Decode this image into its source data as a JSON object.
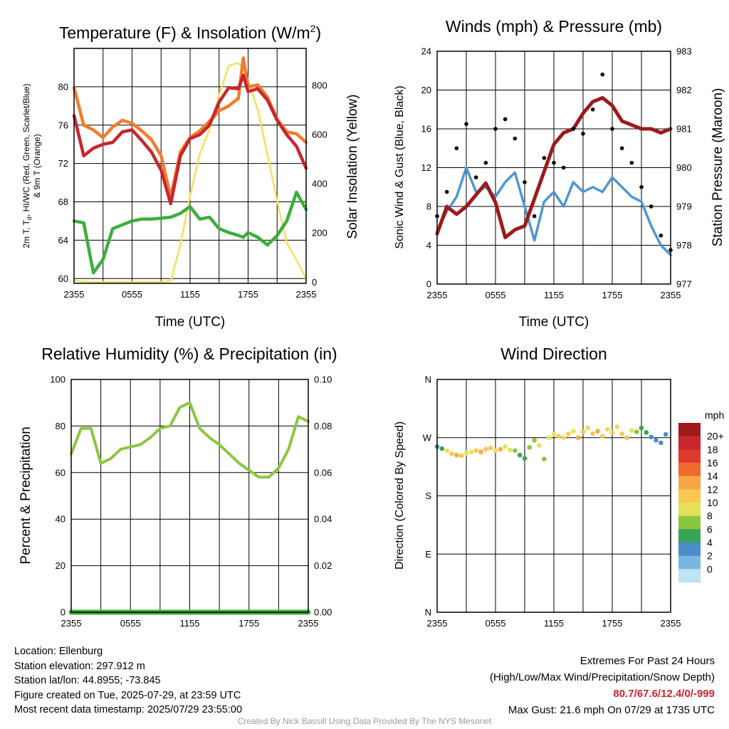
{
  "colors": {
    "temperature": "#c8262e",
    "dewpoint": "#3cae3c",
    "heat_index": "#f07c2e",
    "insolation": "#f5e05a",
    "wind": "#4f97d1",
    "gust": "#000000",
    "pressure": "#9b1b1b",
    "humidity": "#8cc63f",
    "precip": "#3cae3c"
  },
  "panels": {
    "temp": {
      "title_main": "Temperature (F) & Insolation (W/m",
      "title_sup": "2",
      "title_close": ")",
      "ylabel_line1": "2m T, T",
      "ylabel_sub": "d",
      "ylabel_line1b": ", HI/WC (Red, Green, Scarlet/Blue)",
      "ylabel_line2": "& 9m T (Orange)",
      "y2label": "Solar Insolation (Yellow)",
      "xlabel": "Time (UTC)"
    },
    "wind": {
      "title": "Winds (mph) & Pressure (mb)",
      "ylabel": "Sonic Wind & Gust (Blue, Black)",
      "y2label": "Station Pressure (Maroon)",
      "xlabel": "Time (UTC)"
    },
    "rh": {
      "title": "Relative Humidity (%) & Precipitation (in)",
      "ylabel": "Percent & Precipitation"
    },
    "dir": {
      "title": "Wind Direction",
      "ylabel": "Direction (Colored By Speed)",
      "colorbar_title": "mph"
    }
  },
  "info": {
    "location": "Location: Ellenburg",
    "elevation": "Station elevation: 297.912 m",
    "latlon": "Station lat/lon: 44.8955; -73.845",
    "created": "Figure created on Tue, 2025-07-29, at 23:59 UTC",
    "recent": "Most recent data timestamp: 2025/07/29 23:55:00",
    "extremes_title": "Extremes For Past 24 Hours",
    "extremes_sub": "(High/Low/Max Wind/Precipitation/Snow Depth)",
    "extremes_values": "80.7/67.6/12.4/0/-999",
    "max_gust": "Max Gust: 21.6 mph On 07/29 at 1735 UTC",
    "credit": "Created By Nick Bassill Using Data Provided By The NYS Mesonet"
  },
  "chart_data": [
    {
      "id": "temp",
      "type": "line",
      "title": "Temperature (F) & Insolation (W/m2)",
      "xlabel": "Time (UTC)",
      "ylabel": "2m T, Td, HI/WC (Red, Green, Scarlet/Blue) & 9m T (Orange)",
      "y2label": "Solar Insolation (Yellow)",
      "x_tick_labels": [
        "2355",
        "0555",
        "1155",
        "1755",
        "2355"
      ],
      "ylim": [
        59.5,
        84
      ],
      "y_ticks": [
        60,
        64,
        68,
        72,
        76,
        80
      ],
      "y2lim": [
        -5,
        950
      ],
      "y2_ticks": [
        0,
        200,
        400,
        600,
        800
      ],
      "x_hours": [
        0,
        1,
        2,
        3,
        4,
        5,
        6,
        7,
        8,
        9,
        10,
        11,
        12,
        13,
        14,
        15,
        16,
        17,
        17.5,
        18,
        19,
        20,
        21,
        22,
        23,
        24
      ],
      "series": [
        {
          "key": "temperature",
          "axis": "y",
          "values": [
            77.0,
            72.8,
            73.6,
            74.0,
            74.2,
            75.3,
            75.5,
            74.4,
            73.2,
            71.3,
            67.8,
            72.8,
            74.6,
            75.0,
            76.0,
            78.4,
            79.9,
            79.8,
            81.2,
            79.5,
            79.8,
            78.6,
            76.5,
            75.0,
            73.8,
            71.5
          ]
        },
        {
          "key": "heat_index",
          "axis": "y",
          "values": [
            79.9,
            76.0,
            75.5,
            74.7,
            75.8,
            76.5,
            76.2,
            75.4,
            74.5,
            72.8,
            68.5,
            73.2,
            74.7,
            75.4,
            76.4,
            77.5,
            78.0,
            78.8,
            83.0,
            80.0,
            80.2,
            78.9,
            76.6,
            75.3,
            75.1,
            74.2
          ]
        },
        {
          "key": "dewpoint",
          "axis": "y",
          "values": [
            66.0,
            65.8,
            60.6,
            62.0,
            65.2,
            65.6,
            66.0,
            66.2,
            66.2,
            66.3,
            66.4,
            66.8,
            67.5,
            66.2,
            66.4,
            65.2,
            64.8,
            64.5,
            64.3,
            64.8,
            64.3,
            63.5,
            64.5,
            66.0,
            69.0,
            67.2
          ]
        },
        {
          "key": "insolation",
          "axis": "y2",
          "values": [
            5,
            2,
            0,
            0,
            0,
            0,
            0,
            0,
            0,
            0,
            5,
            150,
            350,
            520,
            620,
            760,
            880,
            890,
            870,
            820,
            700,
            520,
            330,
            160,
            90,
            15
          ]
        }
      ]
    },
    {
      "id": "wind",
      "type": "line",
      "title": "Winds (mph) & Pressure (mb)",
      "xlabel": "Time (UTC)",
      "ylabel": "Sonic Wind & Gust (Blue, Black)",
      "y2label": "Station Pressure (Maroon)",
      "x_tick_labels": [
        "2355",
        "0555",
        "1155",
        "1755",
        "2355"
      ],
      "ylim": [
        0,
        24
      ],
      "y_ticks": [
        0,
        4,
        8,
        12,
        16,
        20,
        24
      ],
      "y2lim": [
        977,
        983
      ],
      "y2_ticks": [
        977,
        978,
        979,
        980,
        981,
        982,
        983
      ],
      "x_hours": [
        0,
        1,
        2,
        3,
        4,
        5,
        6,
        7,
        8,
        9,
        10,
        11,
        12,
        13,
        14,
        15,
        16,
        17,
        18,
        19,
        20,
        21,
        22,
        23,
        24
      ],
      "series": [
        {
          "key": "wind",
          "name": "Sonic Wind",
          "axis": "y",
          "values": [
            5.5,
            7.5,
            9.0,
            12.0,
            9.5,
            10.0,
            9.0,
            10.5,
            11.5,
            8.0,
            4.5,
            8.5,
            9.5,
            8.0,
            10.5,
            9.5,
            10.0,
            9.5,
            11.0,
            10.0,
            9.0,
            8.5,
            6.0,
            4.0,
            3.0
          ]
        },
        {
          "key": "gust",
          "name": "Gust",
          "axis": "y",
          "values": [
            7.0,
            9.5,
            14.0,
            16.5,
            11.0,
            12.5,
            16.0,
            17.0,
            15.0,
            10.5,
            7.0,
            13.0,
            12.5,
            12.0,
            16.0,
            15.5,
            18.0,
            21.6,
            16.0,
            14.0,
            12.5,
            10.0,
            8.0,
            5.0,
            3.5
          ]
        },
        {
          "key": "pressure",
          "name": "Station Pressure",
          "axis": "y2",
          "values": [
            978.3,
            979.0,
            978.8,
            979.0,
            979.3,
            979.6,
            979.1,
            978.2,
            978.4,
            978.5,
            979.2,
            979.9,
            980.6,
            980.9,
            981.0,
            981.4,
            981.7,
            981.8,
            981.6,
            981.2,
            981.1,
            981.0,
            981.0,
            980.9,
            981.0
          ]
        }
      ]
    },
    {
      "id": "rh",
      "type": "line",
      "title": "Relative Humidity (%) & Precipitation (in)",
      "xlabel": "",
      "ylabel": "Percent & Precipitation",
      "x_tick_labels": [
        "2355",
        "0555",
        "1155",
        "1755",
        "2355"
      ],
      "ylim": [
        0,
        100
      ],
      "y_ticks": [
        0,
        20,
        40,
        60,
        80,
        100
      ],
      "y2lim": [
        0,
        0.1
      ],
      "y2_ticks": [
        "0.00",
        "0.02",
        "0.04",
        "0.06",
        "0.08",
        "0.10"
      ],
      "x_hours": [
        0,
        1,
        2,
        3,
        4,
        5,
        6,
        7,
        8,
        9,
        10,
        11,
        12,
        13,
        14,
        15,
        16,
        17,
        18,
        19,
        20,
        21,
        22,
        23,
        24
      ],
      "series": [
        {
          "key": "humidity",
          "axis": "y",
          "values": [
            68,
            79,
            79,
            64,
            66,
            70,
            71,
            72,
            75,
            79,
            80,
            88,
            90,
            79,
            75,
            72,
            68,
            64,
            61,
            58,
            58,
            62,
            70,
            84,
            82
          ]
        },
        {
          "key": "precip",
          "axis": "y2",
          "values": [
            0,
            0,
            0,
            0,
            0,
            0,
            0,
            0,
            0,
            0,
            0,
            0,
            0,
            0,
            0,
            0,
            0,
            0,
            0,
            0,
            0,
            0,
            0,
            0,
            0
          ]
        }
      ]
    },
    {
      "id": "dir",
      "type": "scatter",
      "title": "Wind Direction",
      "xlabel": "",
      "ylabel": "Direction (Colored By Speed)",
      "x_tick_labels": [
        "2355",
        "0555",
        "1155",
        "1755",
        "2355"
      ],
      "y_tick_labels": [
        "N",
        "E",
        "S",
        "W",
        "N"
      ],
      "ylim": [
        0,
        360
      ],
      "colorbar": {
        "title": "mph",
        "labels": [
          "20+",
          "18",
          "16",
          "14",
          "12",
          "10",
          "8",
          "6",
          "4",
          "2",
          "0"
        ],
        "colors": [
          "#9e1b1e",
          "#c8262e",
          "#e0382b",
          "#f06a2e",
          "#f8a748",
          "#f8c74e",
          "#e7e05a",
          "#8cc63f",
          "#3aa35a",
          "#4a8fc9",
          "#7ab6e2",
          "#bde3f4"
        ]
      },
      "points": [
        {
          "x": 0,
          "y": 256,
          "s": 3
        },
        {
          "x": 0.5,
          "y": 253,
          "s": 5
        },
        {
          "x": 1,
          "y": 250,
          "s": 9
        },
        {
          "x": 1.5,
          "y": 245,
          "s": 10
        },
        {
          "x": 2,
          "y": 243,
          "s": 12
        },
        {
          "x": 2.5,
          "y": 242,
          "s": 11
        },
        {
          "x": 3,
          "y": 246,
          "s": 9
        },
        {
          "x": 3.5,
          "y": 248,
          "s": 8
        },
        {
          "x": 4,
          "y": 250,
          "s": 11
        },
        {
          "x": 4.5,
          "y": 248,
          "s": 12
        },
        {
          "x": 5,
          "y": 252,
          "s": 10
        },
        {
          "x": 5.5,
          "y": 254,
          "s": 11
        },
        {
          "x": 6,
          "y": 250,
          "s": 9
        },
        {
          "x": 6.5,
          "y": 252,
          "s": 12
        },
        {
          "x": 7,
          "y": 256,
          "s": 8
        },
        {
          "x": 7.5,
          "y": 251,
          "s": 9
        },
        {
          "x": 8,
          "y": 250,
          "s": 7
        },
        {
          "x": 8.5,
          "y": 243,
          "s": 5
        },
        {
          "x": 9,
          "y": 238,
          "s": 4
        },
        {
          "x": 9.5,
          "y": 255,
          "s": 6
        },
        {
          "x": 10,
          "y": 266,
          "s": 7
        },
        {
          "x": 10.5,
          "y": 258,
          "s": 8
        },
        {
          "x": 11,
          "y": 237,
          "s": 6
        },
        {
          "x": 11.5,
          "y": 270,
          "s": 8
        },
        {
          "x": 12,
          "y": 275,
          "s": 9
        },
        {
          "x": 12.5,
          "y": 272,
          "s": 10
        },
        {
          "x": 13,
          "y": 270,
          "s": 8
        },
        {
          "x": 13.5,
          "y": 276,
          "s": 10
        },
        {
          "x": 14,
          "y": 280,
          "s": 9
        },
        {
          "x": 14.5,
          "y": 270,
          "s": 12
        },
        {
          "x": 15,
          "y": 279,
          "s": 10
        },
        {
          "x": 15.5,
          "y": 285,
          "s": 8
        },
        {
          "x": 16,
          "y": 276,
          "s": 11
        },
        {
          "x": 16.5,
          "y": 280,
          "s": 12
        },
        {
          "x": 17,
          "y": 272,
          "s": 10
        },
        {
          "x": 17.5,
          "y": 283,
          "s": 9
        },
        {
          "x": 18,
          "y": 278,
          "s": 11
        },
        {
          "x": 18.5,
          "y": 287,
          "s": 8
        },
        {
          "x": 19,
          "y": 276,
          "s": 10
        },
        {
          "x": 19.5,
          "y": 270,
          "s": 11
        },
        {
          "x": 20,
          "y": 281,
          "s": 9
        },
        {
          "x": 20.5,
          "y": 279,
          "s": 6
        },
        {
          "x": 21,
          "y": 285,
          "s": 5
        },
        {
          "x": 21.5,
          "y": 278,
          "s": 4
        },
        {
          "x": 22,
          "y": 271,
          "s": 3
        },
        {
          "x": 22.5,
          "y": 266,
          "s": 3
        },
        {
          "x": 23,
          "y": 262,
          "s": 2
        },
        {
          "x": 23.5,
          "y": 275,
          "s": 2
        }
      ]
    }
  ]
}
